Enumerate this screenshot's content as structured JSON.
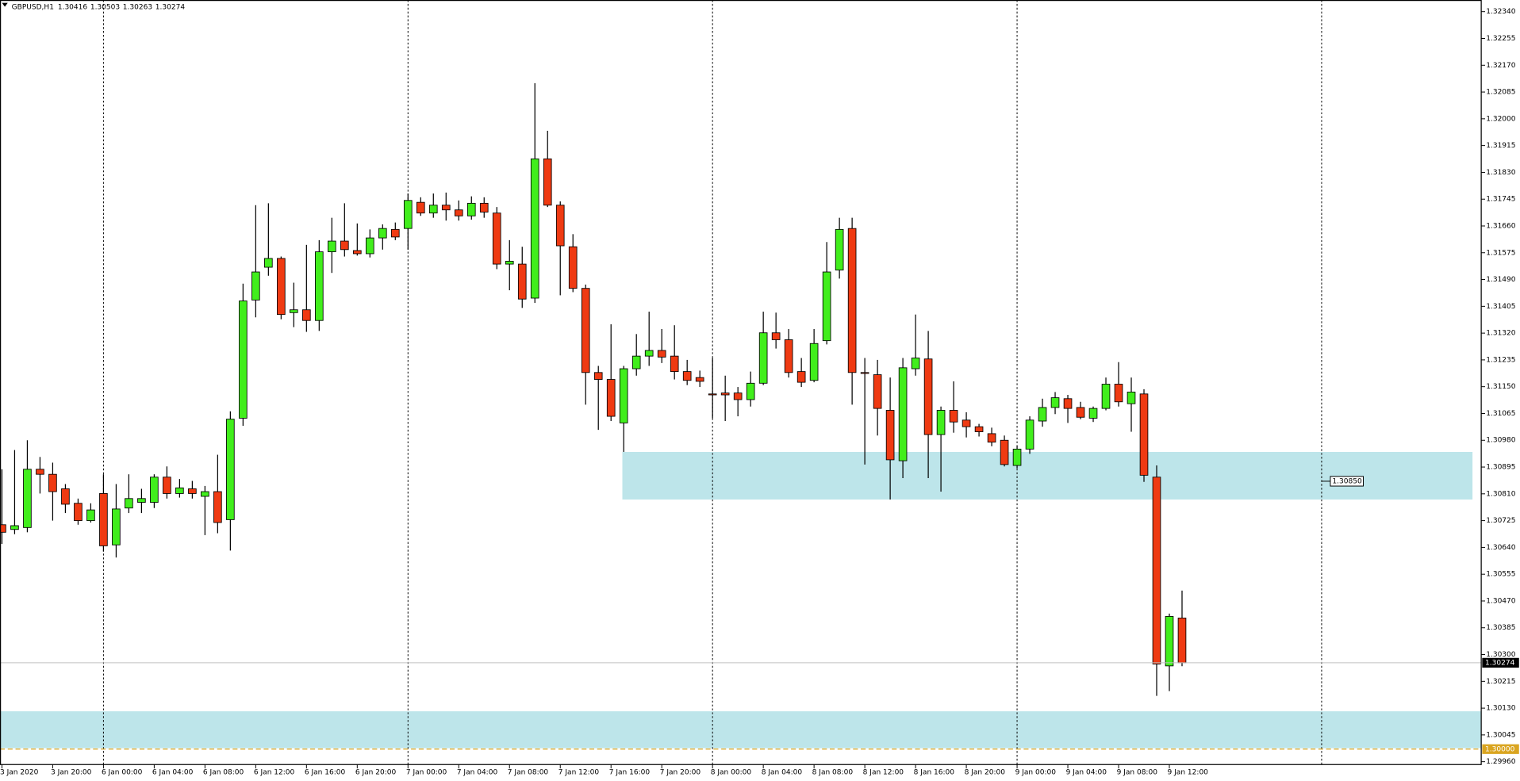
{
  "chart_data": {
    "type": "candlestick",
    "title": "GBPUSD,H1",
    "up_color": "#41ee1c",
    "down_color": "#ef3a12",
    "categories": [
      "3 Jan 2020",
      null,
      null,
      null,
      "3 Jan 20:00",
      null,
      null,
      null,
      "6 Jan 00:00",
      null,
      null,
      null,
      "6 Jan 04:00",
      null,
      null,
      null,
      "6 Jan 08:00",
      null,
      null,
      null,
      "6 Jan 12:00",
      null,
      null,
      null,
      "6 Jan 16:00",
      null,
      null,
      null,
      "6 Jan 20:00",
      null,
      null,
      null,
      "7 Jan 00:00",
      null,
      null,
      null,
      "7 Jan 04:00",
      null,
      null,
      null,
      "7 Jan 08:00",
      null,
      null,
      null,
      "7 Jan 12:00",
      null,
      null,
      null,
      "7 Jan 16:00",
      null,
      null,
      null,
      "7 Jan 20:00",
      null,
      null,
      null,
      "8 Jan 00:00",
      null,
      null,
      null,
      "8 Jan 04:00",
      null,
      null,
      null,
      "8 Jan 08:00",
      null,
      null,
      null,
      "8 Jan 12:00",
      null,
      null,
      null,
      "8 Jan 16:00",
      null,
      null,
      null,
      "8 Jan 20:00",
      null,
      null,
      null,
      "9 Jan 00:00",
      null,
      null,
      null,
      "9 Jan 04:00",
      null,
      null,
      null,
      "9 Jan 08:00",
      null,
      null,
      null,
      "9 Jan 12:00",
      null
    ],
    "open": [
      1.30712,
      1.30697,
      1.30703,
      1.30888,
      1.30872,
      1.30826,
      1.3078,
      1.30725,
      1.30811,
      1.30648,
      1.30765,
      1.30783,
      1.30783,
      1.30863,
      1.30811,
      1.30826,
      1.30802,
      1.30817,
      1.30728,
      1.3105,
      1.31425,
      1.31529,
      1.31557,
      1.31385,
      1.31394,
      1.3136,
      1.31578,
      1.31612,
      1.31582,
      1.31572,
      1.31622,
      1.31649,
      1.31652,
      1.31735,
      1.31701,
      1.31726,
      1.31711,
      1.31692,
      1.31732,
      1.31701,
      1.31539,
      1.31539,
      1.31431,
      1.31873,
      1.31726,
      1.31594,
      1.31462,
      1.31195,
      1.31173,
      1.31035,
      1.31207,
      1.31247,
      1.31265,
      1.31247,
      1.31198,
      1.31179,
      1.31127,
      1.3113,
      1.3113,
      1.31109,
      1.31161,
      1.31321,
      1.31299,
      1.31198,
      1.3117,
      1.31296,
      1.3152,
      1.31652,
      1.31195,
      1.31188,
      1.31075,
      1.30915,
      1.31207,
      1.31238,
      1.30998,
      1.31075,
      1.31044,
      1.31023,
      1.31001,
      1.3098,
      1.309,
      1.30952,
      1.31041,
      1.31084,
      1.31112,
      1.31084,
      1.3105,
      1.31081,
      1.31158,
      1.31096,
      1.31127,
      1.30863,
      1.30264,
      1.30416
    ],
    "high": [
      1.30888,
      1.30949,
      1.3098,
      1.30927,
      1.30909,
      1.30841,
      1.30795,
      1.3078,
      1.30872,
      1.30841,
      1.30872,
      1.30826,
      1.30872,
      1.30897,
      1.30857,
      1.30851,
      1.30835,
      1.30934,
      1.31072,
      1.31477,
      1.31726,
      1.31732,
      1.31563,
      1.3148,
      1.316,
      1.31615,
      1.31686,
      1.31732,
      1.31668,
      1.31649,
      1.31665,
      1.31671,
      1.31763,
      1.31751,
      1.31763,
      1.31766,
      1.31741,
      1.31754,
      1.31751,
      1.3172,
      1.31615,
      1.31594,
      1.32113,
      1.31962,
      1.31738,
      1.31634,
      1.31474,
      1.31216,
      1.31348,
      1.31216,
      1.31317,
      1.31388,
      1.31333,
      1.31345,
      1.31235,
      1.31201,
      1.31241,
      1.31185,
      1.31149,
      1.31198,
      1.31388,
      1.31385,
      1.31333,
      1.31241,
      1.31333,
      1.31609,
      1.31686,
      1.31686,
      1.31241,
      1.31235,
      1.31179,
      1.31241,
      1.31379,
      1.31327,
      1.31087,
      1.31167,
      1.31069,
      1.31032,
      1.3102,
      1.30995,
      1.30964,
      1.31056,
      1.31112,
      1.31133,
      1.31124,
      1.31102,
      1.31087,
      1.31179,
      1.31228,
      1.31179,
      1.31142,
      1.309,
      1.3043,
      1.30503
    ],
    "low": [
      1.30651,
      1.30682,
      1.30688,
      1.30811,
      1.30725,
      1.30749,
      1.30712,
      1.30719,
      1.30627,
      1.30608,
      1.30749,
      1.30749,
      1.30765,
      1.30795,
      1.30798,
      1.30795,
      1.30679,
      1.30685,
      1.3063,
      1.31026,
      1.3137,
      1.31502,
      1.31364,
      1.31339,
      1.31324,
      1.31327,
      1.31511,
      1.31563,
      1.31566,
      1.3156,
      1.31585,
      1.31615,
      1.31585,
      1.31692,
      1.31686,
      1.31677,
      1.31677,
      1.3168,
      1.31686,
      1.31523,
      1.31456,
      1.314,
      1.31416,
      1.3172,
      1.3144,
      1.3145,
      1.31093,
      1.31013,
      1.31041,
      1.30943,
      1.31185,
      1.31216,
      1.31225,
      1.31173,
      1.31155,
      1.31149,
      1.3105,
      1.31041,
      1.31056,
      1.31087,
      1.31155,
      1.31271,
      1.31179,
      1.31149,
      1.31164,
      1.31284,
      1.31493,
      1.31093,
      1.30903,
      1.30995,
      1.30792,
      1.3086,
      1.31185,
      1.3086,
      1.30817,
      1.31004,
      1.30989,
      1.30992,
      1.30961,
      1.30897,
      1.30891,
      1.30937,
      1.31023,
      1.31063,
      1.31035,
      1.31047,
      1.31038,
      1.31075,
      1.31087,
      1.31007,
      1.30848,
      1.30169,
      1.30184,
      1.30263
    ],
    "close": [
      1.30688,
      1.30709,
      1.30888,
      1.30872,
      1.30817,
      1.30777,
      1.30725,
      1.30759,
      1.30645,
      1.30762,
      1.30795,
      1.30795,
      1.30863,
      1.30811,
      1.30829,
      1.30811,
      1.30817,
      1.30719,
      1.31047,
      1.31422,
      1.31514,
      1.31557,
      1.31379,
      1.31394,
      1.3136,
      1.31578,
      1.31612,
      1.31585,
      1.31572,
      1.31622,
      1.31652,
      1.31625,
      1.31741,
      1.31701,
      1.31726,
      1.31711,
      1.31692,
      1.31732,
      1.31704,
      1.31539,
      1.31548,
      1.31428,
      1.31873,
      1.31726,
      1.31597,
      1.31462,
      1.31195,
      1.31173,
      1.31056,
      1.31207,
      1.31247,
      1.31265,
      1.31244,
      1.31198,
      1.3117,
      1.31167,
      1.31124,
      1.31124,
      1.31109,
      1.31161,
      1.31321,
      1.31299,
      1.31195,
      1.31164,
      1.31287,
      1.31514,
      1.31649,
      1.31195,
      1.31192,
      1.31081,
      1.30918,
      1.3121,
      1.31241,
      1.30998,
      1.31075,
      1.31038,
      1.31023,
      1.31007,
      1.30974,
      1.30903,
      1.30952,
      1.31044,
      1.31084,
      1.31115,
      1.31081,
      1.31053,
      1.31081,
      1.31158,
      1.31102,
      1.31133,
      1.30869,
      1.3027,
      1.30421,
      1.30274
    ],
    "ylim": [
      1.29951,
      1.32377
    ],
    "yticks": [
      {
        "value": 1.2996,
        "label": "1.29960"
      },
      1.30045,
      {
        "value": 1.3013,
        "label": "1.30130"
      },
      1.30215,
      {
        "value": 1.303,
        "label": "1.30300"
      },
      1.30385,
      {
        "value": 1.3047,
        "label": "1.30470"
      },
      1.30555,
      {
        "value": 1.3064,
        "label": "1.30640"
      },
      1.30725,
      {
        "value": 1.3081,
        "label": "1.30810"
      },
      1.30895,
      {
        "value": 1.3098,
        "label": "1.30980"
      },
      1.31065,
      {
        "value": 1.3115,
        "label": "1.31150"
      },
      1.31235,
      {
        "value": 1.3132,
        "label": "1.31320"
      },
      1.31405,
      {
        "value": 1.3149,
        "label": "1.31490"
      },
      1.31575,
      {
        "value": 1.3166,
        "label": "1.31660"
      },
      1.31745,
      {
        "value": 1.3183,
        "label": "1.31830"
      },
      1.31915,
      {
        "value": 1.32,
        "label": "1.32000"
      },
      1.32085,
      {
        "value": 1.3217,
        "label": "1.32170"
      },
      1.32255,
      {
        "value": 1.3234,
        "label": "1.32340"
      }
    ],
    "grid": false,
    "zones": [
      {
        "top": 1.30943,
        "bottom": 1.30792,
        "color": "#bde5ea"
      },
      {
        "top": 1.3012,
        "bottom": 1.30003,
        "color": "#bde5ea"
      }
    ],
    "levels": [
      {
        "value": 1.3,
        "label": "1.30000",
        "color": "#daa520"
      }
    ],
    "price_labels": [
      {
        "value": 1.3085,
        "label": "1.30850"
      }
    ]
  }
}
